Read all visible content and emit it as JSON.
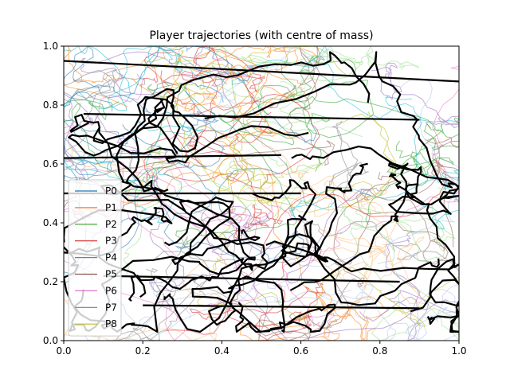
{
  "chart_data": {
    "type": "line",
    "title": "Player trajectories (with centre of mass)",
    "xlabel": "",
    "ylabel": "",
    "xlim": [
      0,
      1
    ],
    "ylim": [
      0,
      1
    ],
    "x_ticks": [
      "0.0",
      "0.2",
      "0.4",
      "0.6",
      "0.8",
      "1.0"
    ],
    "y_ticks": [
      "0.0",
      "0.2",
      "0.4",
      "0.6",
      "0.8",
      "1.0"
    ],
    "grid": false,
    "legend_position": "center-left",
    "series": [
      {
        "name": "P0",
        "color": "#1f77b4"
      },
      {
        "name": "P1",
        "color": "#ff7f0e"
      },
      {
        "name": "P2",
        "color": "#2ca02c"
      },
      {
        "name": "P3",
        "color": "#d62728"
      },
      {
        "name": "P4",
        "color": "#9467bd"
      },
      {
        "name": "P5",
        "color": "#8c564b"
      },
      {
        "name": "P6",
        "color": "#e377c2"
      },
      {
        "name": "P7",
        "color": "#7f7f7f"
      },
      {
        "name": "P8",
        "color": "#bcbd22"
      }
    ],
    "centre_of_mass_color": "#000000",
    "extra_series_colors": [
      "#17becf",
      "#aec7e8",
      "#ffbb78",
      "#98df8a"
    ]
  }
}
